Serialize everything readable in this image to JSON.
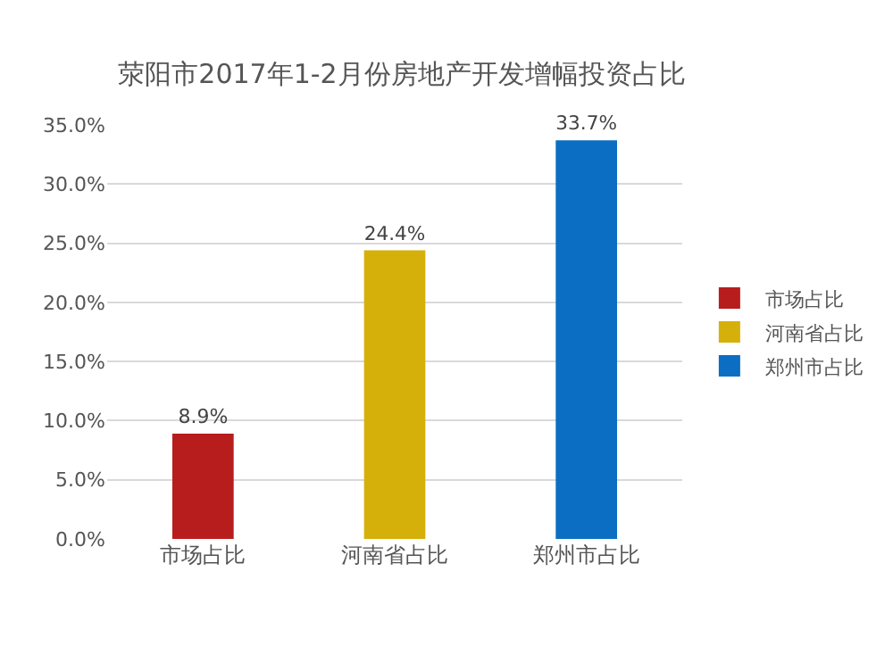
{
  "chart_data": {
    "type": "bar",
    "title": "荥阳市2017年1-2月份房地产开发增幅投资占比",
    "categories": [
      "市场占比",
      "河南省占比",
      "郑州市占比"
    ],
    "series": [
      {
        "name": "市场占比",
        "color": "#b81d1d",
        "values": [
          8.9,
          null,
          null
        ],
        "value_labels": [
          "8.9%",
          null,
          null
        ]
      },
      {
        "name": "河南省占比",
        "color": "#d6b00a",
        "values": [
          null,
          24.4,
          null
        ],
        "value_labels": [
          null,
          "24.4%",
          null
        ]
      },
      {
        "name": "郑州市占比",
        "color": "#0b6ec2",
        "values": [
          null,
          null,
          33.7
        ],
        "value_labels": [
          null,
          null,
          "33.7%"
        ]
      }
    ],
    "ylim": [
      0,
      35
    ],
    "yticks": [
      {
        "value": 0,
        "label": "0.0%"
      },
      {
        "value": 5,
        "label": "5.0%"
      },
      {
        "value": 10,
        "label": "10.0%"
      },
      {
        "value": 15,
        "label": "15.0%"
      },
      {
        "value": 20,
        "label": "20.0%"
      },
      {
        "value": 25,
        "label": "25.0%"
      },
      {
        "value": 30,
        "label": "30.0%"
      },
      {
        "value": 35,
        "label": "35.0%"
      }
    ],
    "grid": "y",
    "legend": "right"
  }
}
